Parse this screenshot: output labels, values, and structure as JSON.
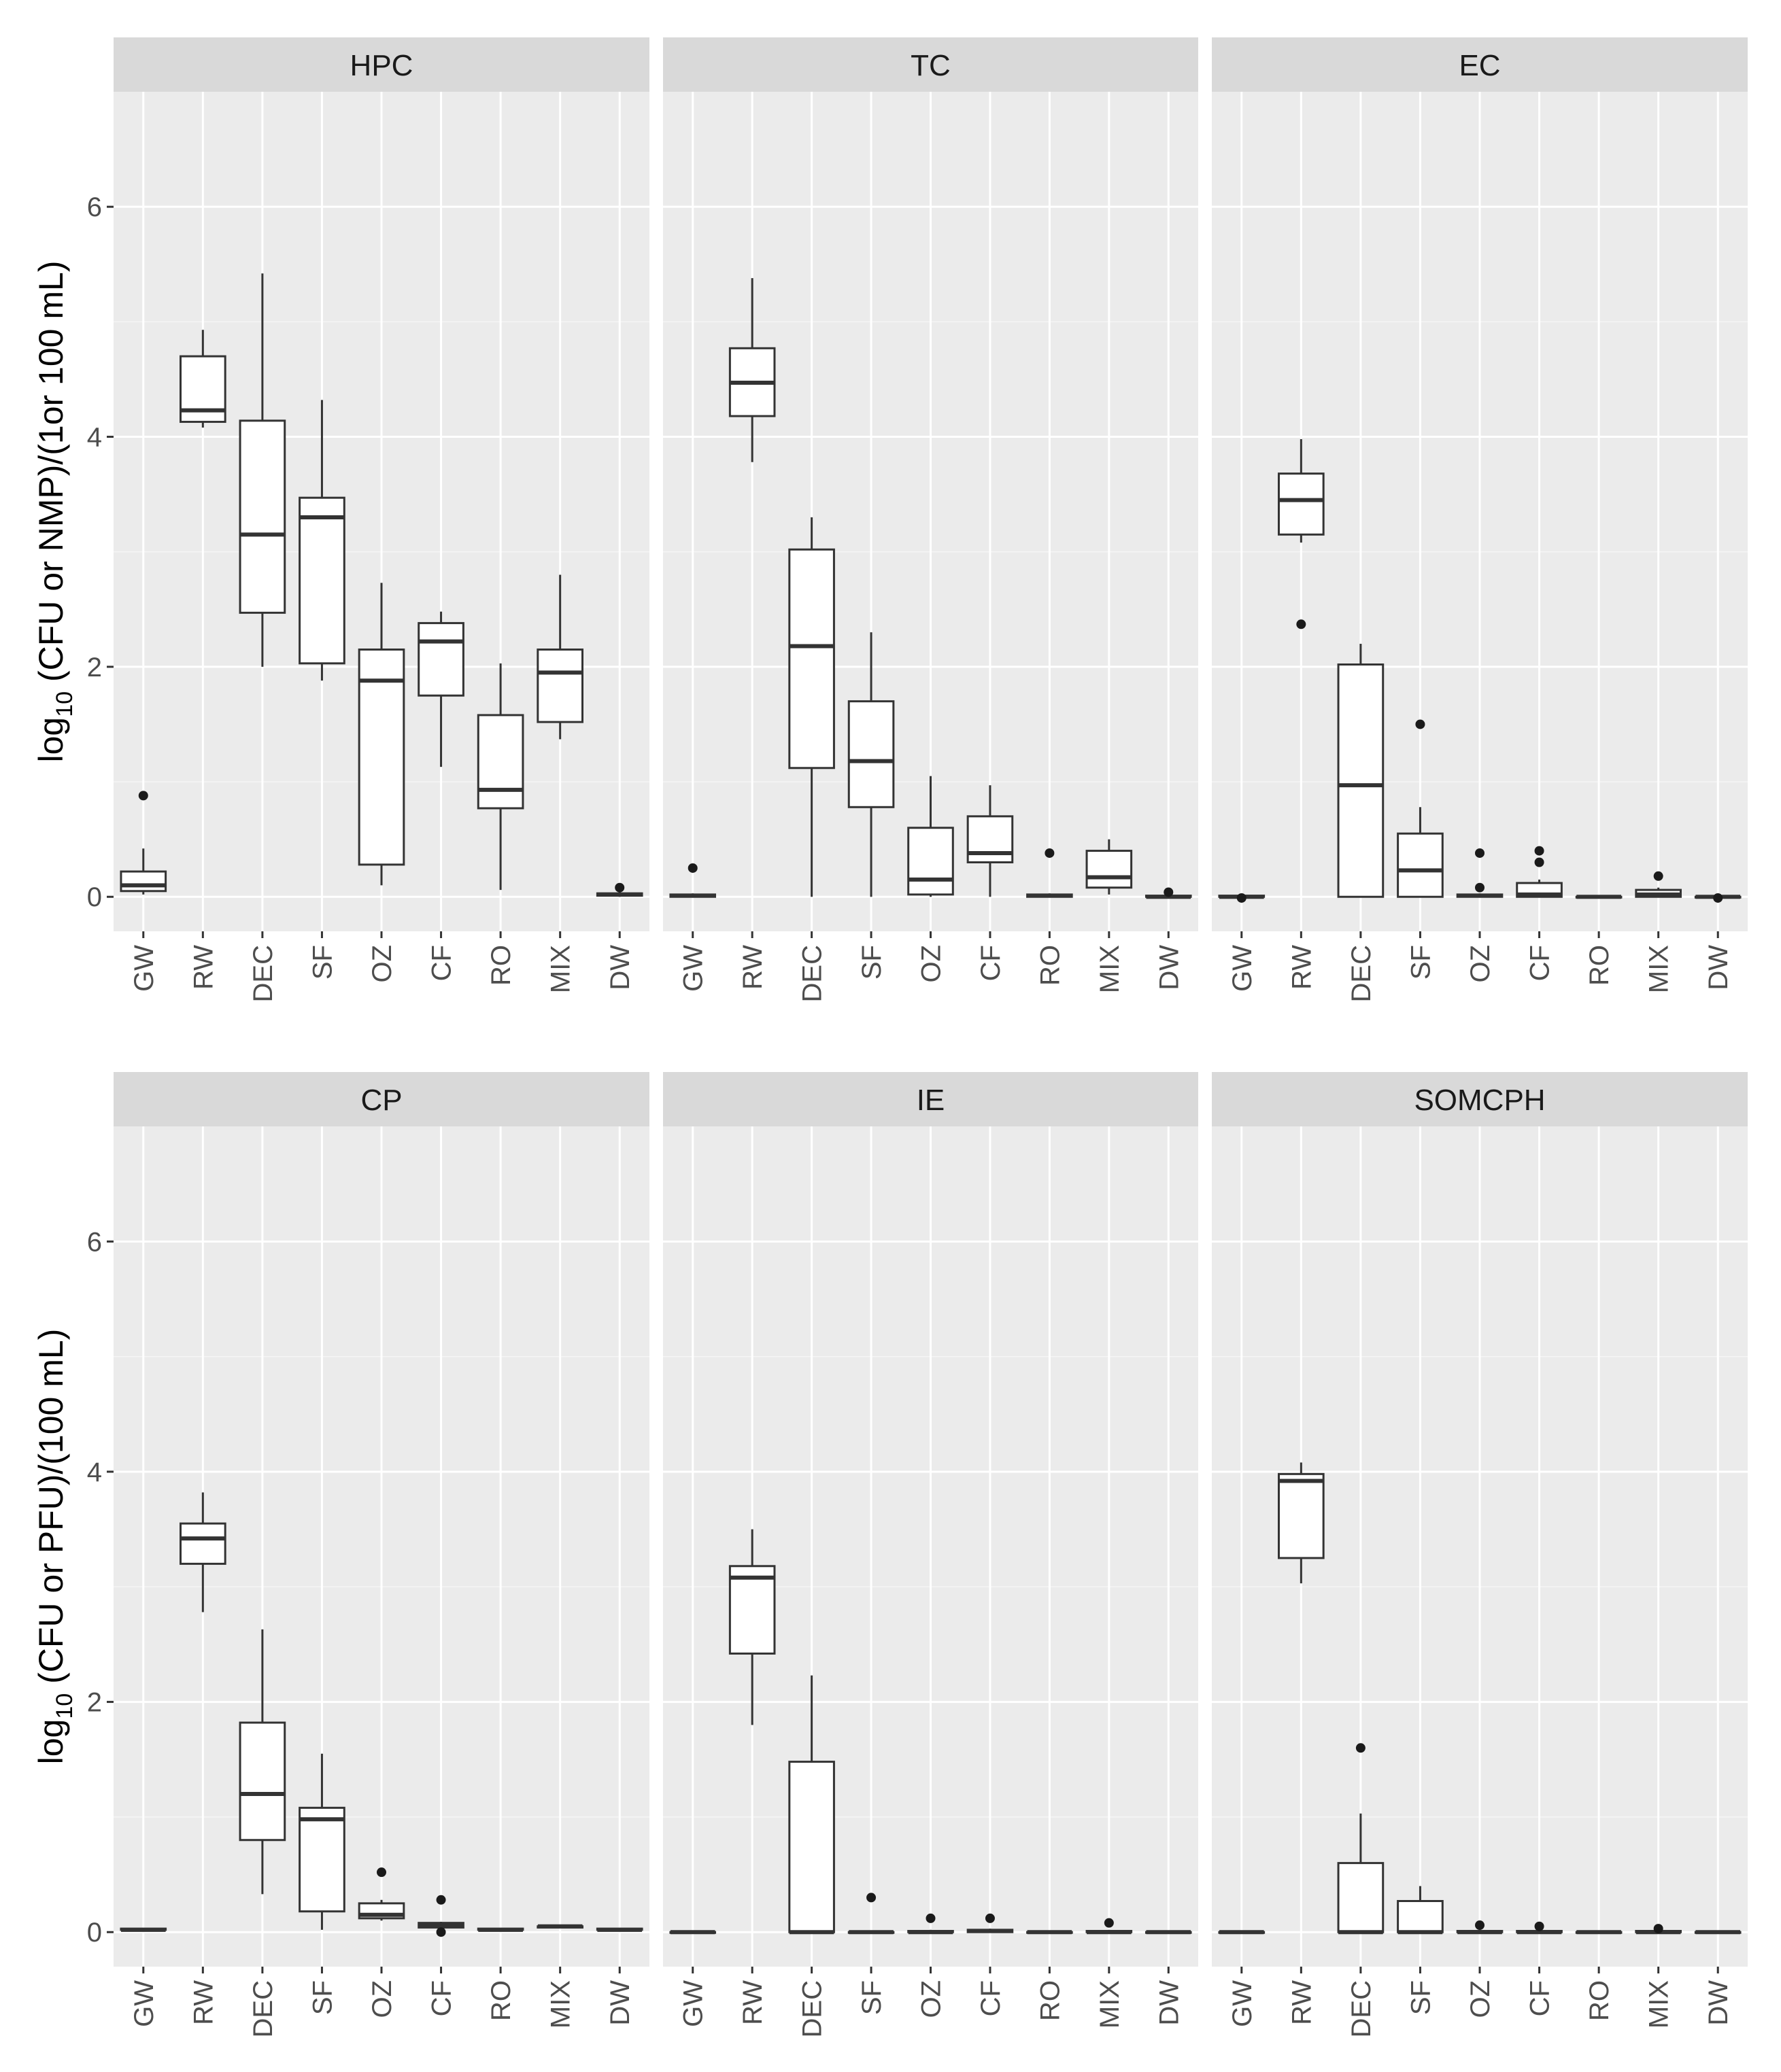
{
  "chart_data": {
    "type": "boxplot",
    "categories": [
      "GW",
      "RW",
      "DEC",
      "SF",
      "OZ",
      "CF",
      "RO",
      "MIX",
      "DW"
    ],
    "ylim": [
      -0.3,
      7.0
    ],
    "yticks": [
      0,
      2,
      4,
      6
    ],
    "grid": true,
    "rows": [
      {
        "ylabel_prefix": "log",
        "ylabel_sub": "10",
        "ylabel_suffix": " (CFU or NMP)/(1or 100 mL)",
        "panels": [
          {
            "title": "HPC",
            "boxes": [
              {
                "cat": "GW",
                "min": 0.02,
                "q1": 0.05,
                "median": 0.1,
                "q3": 0.22,
                "max": 0.42,
                "outliers": [
                  0.88
                ]
              },
              {
                "cat": "RW",
                "min": 4.08,
                "q1": 4.13,
                "median": 4.23,
                "q3": 4.7,
                "max": 4.93,
                "outliers": []
              },
              {
                "cat": "DEC",
                "min": 2.0,
                "q1": 2.47,
                "median": 3.15,
                "q3": 4.14,
                "max": 5.42,
                "outliers": []
              },
              {
                "cat": "SF",
                "min": 1.88,
                "q1": 2.03,
                "median": 3.3,
                "q3": 3.47,
                "max": 4.32,
                "outliers": []
              },
              {
                "cat": "OZ",
                "min": 0.1,
                "q1": 0.28,
                "median": 1.88,
                "q3": 2.15,
                "max": 2.73,
                "outliers": []
              },
              {
                "cat": "CF",
                "min": 1.13,
                "q1": 1.75,
                "median": 2.22,
                "q3": 2.38,
                "max": 2.48,
                "outliers": []
              },
              {
                "cat": "RO",
                "min": 0.06,
                "q1": 0.77,
                "median": 0.93,
                "q3": 1.58,
                "max": 2.03,
                "outliers": []
              },
              {
                "cat": "MIX",
                "min": 1.37,
                "q1": 1.52,
                "median": 1.95,
                "q3": 2.15,
                "max": 2.8,
                "outliers": []
              },
              {
                "cat": "DW",
                "min": 0.0,
                "q1": 0.01,
                "median": 0.02,
                "q3": 0.03,
                "max": 0.04,
                "outliers": [
                  0.08
                ]
              }
            ]
          },
          {
            "title": "TC",
            "boxes": [
              {
                "cat": "GW",
                "min": 0.0,
                "q1": 0.0,
                "median": 0.01,
                "q3": 0.02,
                "max": 0.03,
                "outliers": [
                  0.25
                ]
              },
              {
                "cat": "RW",
                "min": 3.78,
                "q1": 4.18,
                "median": 4.47,
                "q3": 4.77,
                "max": 5.38,
                "outliers": []
              },
              {
                "cat": "DEC",
                "min": 0.0,
                "q1": 1.12,
                "median": 2.18,
                "q3": 3.02,
                "max": 3.3,
                "outliers": []
              },
              {
                "cat": "SF",
                "min": 0.0,
                "q1": 0.78,
                "median": 1.18,
                "q3": 1.7,
                "max": 2.3,
                "outliers": []
              },
              {
                "cat": "OZ",
                "min": 0.0,
                "q1": 0.02,
                "median": 0.15,
                "q3": 0.6,
                "max": 1.05,
                "outliers": []
              },
              {
                "cat": "CF",
                "min": 0.0,
                "q1": 0.3,
                "median": 0.38,
                "q3": 0.7,
                "max": 0.97,
                "outliers": []
              },
              {
                "cat": "RO",
                "min": 0.0,
                "q1": 0.0,
                "median": 0.01,
                "q3": 0.02,
                "max": 0.03,
                "outliers": [
                  0.38
                ]
              },
              {
                "cat": "MIX",
                "min": 0.02,
                "q1": 0.08,
                "median": 0.17,
                "q3": 0.4,
                "max": 0.5,
                "outliers": []
              },
              {
                "cat": "DW",
                "min": 0.0,
                "q1": 0.0,
                "median": 0.0,
                "q3": 0.01,
                "max": 0.02,
                "outliers": [
                  0.04
                ]
              }
            ]
          },
          {
            "title": "EC",
            "boxes": [
              {
                "cat": "GW",
                "min": 0.0,
                "q1": 0.0,
                "median": 0.0,
                "q3": 0.01,
                "max": 0.02,
                "outliers": [
                  -0.01
                ]
              },
              {
                "cat": "RW",
                "min": 3.08,
                "q1": 3.15,
                "median": 3.45,
                "q3": 3.68,
                "max": 3.98,
                "outliers": [
                  2.37
                ]
              },
              {
                "cat": "DEC",
                "min": 0.0,
                "q1": 0.0,
                "median": 0.97,
                "q3": 2.02,
                "max": 2.2,
                "outliers": []
              },
              {
                "cat": "SF",
                "min": 0.0,
                "q1": 0.0,
                "median": 0.23,
                "q3": 0.55,
                "max": 0.78,
                "outliers": [
                  1.5
                ]
              },
              {
                "cat": "OZ",
                "min": 0.0,
                "q1": 0.0,
                "median": 0.01,
                "q3": 0.02,
                "max": 0.03,
                "outliers": [
                  0.08,
                  0.38
                ]
              },
              {
                "cat": "CF",
                "min": 0.0,
                "q1": 0.0,
                "median": 0.02,
                "q3": 0.12,
                "max": 0.15,
                "outliers": [
                  0.3,
                  0.4
                ]
              },
              {
                "cat": "RO",
                "min": 0.0,
                "q1": 0.0,
                "median": 0.0,
                "q3": 0.0,
                "max": 0.0,
                "outliers": []
              },
              {
                "cat": "MIX",
                "min": 0.0,
                "q1": 0.0,
                "median": 0.02,
                "q3": 0.06,
                "max": 0.08,
                "outliers": [
                  0.18
                ]
              },
              {
                "cat": "DW",
                "min": 0.0,
                "q1": 0.0,
                "median": 0.0,
                "q3": 0.0,
                "max": 0.0,
                "outliers": [
                  -0.01
                ]
              }
            ]
          }
        ]
      },
      {
        "ylabel_prefix": "log",
        "ylabel_sub": "10",
        "ylabel_suffix": " (CFU or PFU)/(100 mL)",
        "panels": [
          {
            "title": "CP",
            "boxes": [
              {
                "cat": "GW",
                "min": 0.02,
                "q1": 0.02,
                "median": 0.02,
                "q3": 0.03,
                "max": 0.03,
                "outliers": []
              },
              {
                "cat": "RW",
                "min": 2.78,
                "q1": 3.2,
                "median": 3.42,
                "q3": 3.55,
                "max": 3.82,
                "outliers": []
              },
              {
                "cat": "DEC",
                "min": 0.33,
                "q1": 0.8,
                "median": 1.2,
                "q3": 1.82,
                "max": 2.63,
                "outliers": []
              },
              {
                "cat": "SF",
                "min": 0.02,
                "q1": 0.18,
                "median": 0.98,
                "q3": 1.08,
                "max": 1.55,
                "outliers": []
              },
              {
                "cat": "OZ",
                "min": 0.1,
                "q1": 0.12,
                "median": 0.15,
                "q3": 0.25,
                "max": 0.28,
                "outliers": [
                  0.52
                ]
              },
              {
                "cat": "CF",
                "min": 0.02,
                "q1": 0.04,
                "median": 0.06,
                "q3": 0.08,
                "max": 0.09,
                "outliers": [
                  0.0,
                  0.28
                ]
              },
              {
                "cat": "RO",
                "min": 0.02,
                "q1": 0.02,
                "median": 0.02,
                "q3": 0.03,
                "max": 0.03,
                "outliers": []
              },
              {
                "cat": "MIX",
                "min": 0.04,
                "q1": 0.04,
                "median": 0.05,
                "q3": 0.05,
                "max": 0.05,
                "outliers": []
              },
              {
                "cat": "DW",
                "min": 0.02,
                "q1": 0.02,
                "median": 0.02,
                "q3": 0.03,
                "max": 0.03,
                "outliers": []
              }
            ]
          },
          {
            "title": "IE",
            "boxes": [
              {
                "cat": "GW",
                "min": 0.0,
                "q1": 0.0,
                "median": 0.0,
                "q3": 0.0,
                "max": 0.0,
                "outliers": []
              },
              {
                "cat": "RW",
                "min": 1.8,
                "q1": 2.42,
                "median": 3.08,
                "q3": 3.18,
                "max": 3.5,
                "outliers": []
              },
              {
                "cat": "DEC",
                "min": 0.0,
                "q1": 0.0,
                "median": 0.0,
                "q3": 1.48,
                "max": 2.23,
                "outliers": []
              },
              {
                "cat": "SF",
                "min": 0.0,
                "q1": 0.0,
                "median": 0.0,
                "q3": 0.0,
                "max": 0.01,
                "outliers": [
                  0.3
                ]
              },
              {
                "cat": "OZ",
                "min": 0.0,
                "q1": 0.0,
                "median": 0.0,
                "q3": 0.01,
                "max": 0.02,
                "outliers": [
                  0.12
                ]
              },
              {
                "cat": "CF",
                "min": 0.0,
                "q1": 0.0,
                "median": 0.01,
                "q3": 0.02,
                "max": 0.03,
                "outliers": [
                  0.12
                ]
              },
              {
                "cat": "RO",
                "min": 0.0,
                "q1": 0.0,
                "median": 0.0,
                "q3": 0.0,
                "max": 0.0,
                "outliers": []
              },
              {
                "cat": "MIX",
                "min": 0.0,
                "q1": 0.0,
                "median": 0.0,
                "q3": 0.01,
                "max": 0.02,
                "outliers": [
                  0.08
                ]
              },
              {
                "cat": "DW",
                "min": 0.0,
                "q1": 0.0,
                "median": 0.0,
                "q3": 0.0,
                "max": 0.0,
                "outliers": []
              }
            ]
          },
          {
            "title": "SOMCPH",
            "boxes": [
              {
                "cat": "GW",
                "min": 0.0,
                "q1": 0.0,
                "median": 0.0,
                "q3": 0.0,
                "max": 0.0,
                "outliers": []
              },
              {
                "cat": "RW",
                "min": 3.03,
                "q1": 3.25,
                "median": 3.92,
                "q3": 3.98,
                "max": 4.08,
                "outliers": []
              },
              {
                "cat": "DEC",
                "min": 0.0,
                "q1": 0.0,
                "median": 0.0,
                "q3": 0.6,
                "max": 1.03,
                "outliers": [
                  1.6
                ]
              },
              {
                "cat": "SF",
                "min": 0.0,
                "q1": 0.0,
                "median": 0.0,
                "q3": 0.27,
                "max": 0.4,
                "outliers": []
              },
              {
                "cat": "OZ",
                "min": 0.0,
                "q1": 0.0,
                "median": 0.0,
                "q3": 0.01,
                "max": 0.02,
                "outliers": [
                  0.06
                ]
              },
              {
                "cat": "CF",
                "min": 0.0,
                "q1": 0.0,
                "median": 0.0,
                "q3": 0.01,
                "max": 0.02,
                "outliers": [
                  0.05
                ]
              },
              {
                "cat": "RO",
                "min": 0.0,
                "q1": 0.0,
                "median": 0.0,
                "q3": 0.0,
                "max": 0.0,
                "outliers": []
              },
              {
                "cat": "MIX",
                "min": 0.0,
                "q1": 0.0,
                "median": 0.0,
                "q3": 0.01,
                "max": 0.02,
                "outliers": [
                  0.03
                ]
              },
              {
                "cat": "DW",
                "min": 0.0,
                "q1": 0.0,
                "median": 0.0,
                "q3": 0.0,
                "max": 0.0,
                "outliers": []
              }
            ]
          }
        ]
      }
    ]
  }
}
